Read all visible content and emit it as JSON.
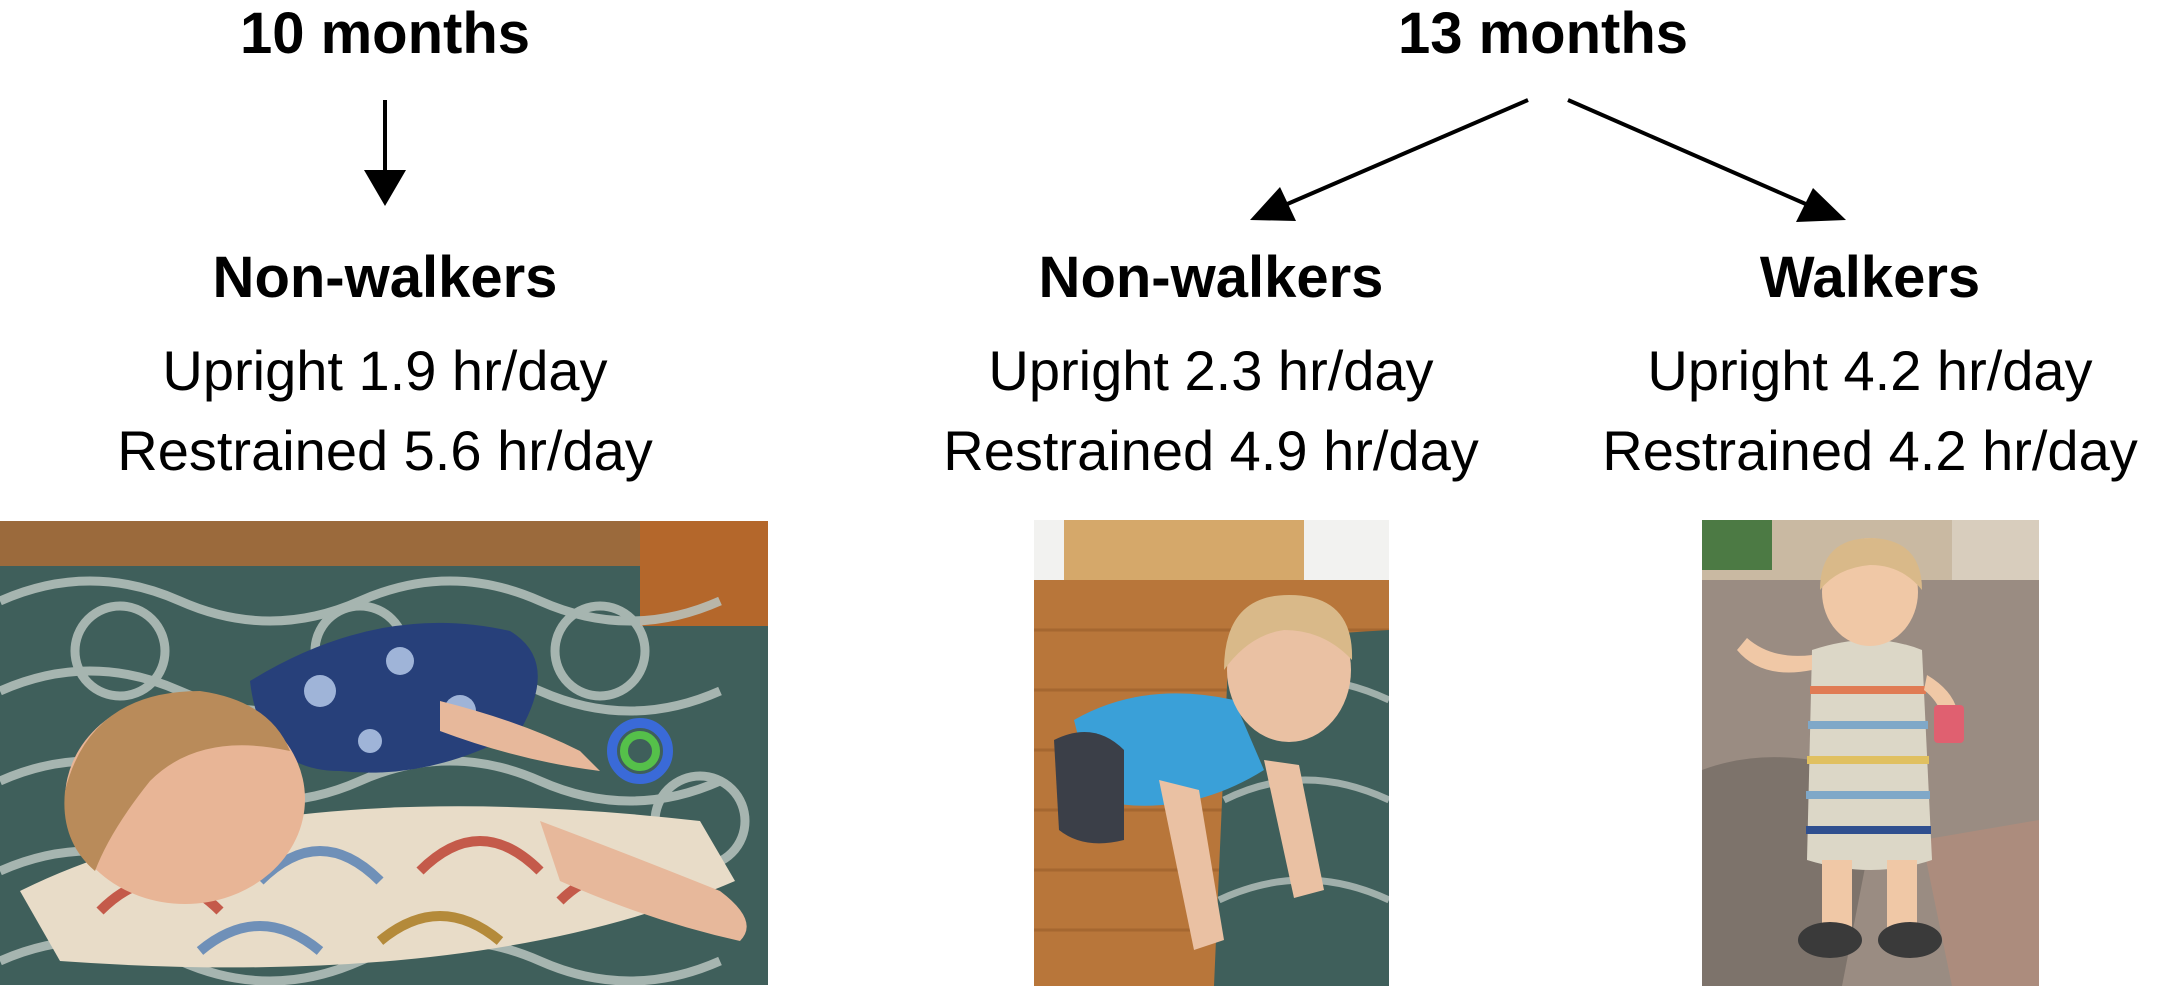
{
  "ages": {
    "age10": "10 months",
    "age13": "13 months"
  },
  "groups": {
    "g10_nonwalkers": {
      "label": "Non-walkers",
      "upright": "Upright 1.9 hr/day",
      "restrained": "Restrained 5.6 hr/day"
    },
    "g13_nonwalkers": {
      "label": "Non-walkers",
      "upright": "Upright 2.3 hr/day",
      "restrained": "Restrained 4.9 hr/day"
    },
    "g13_walkers": {
      "label": "Walkers",
      "upright": "Upright 4.2 hr/day",
      "restrained": "Restrained 4.2 hr/day"
    }
  },
  "colors": {
    "text": "#000000",
    "arrow": "#000000",
    "rug": "#3f5f5b",
    "floor": "#b8763a",
    "pavement": "#8c8078"
  }
}
